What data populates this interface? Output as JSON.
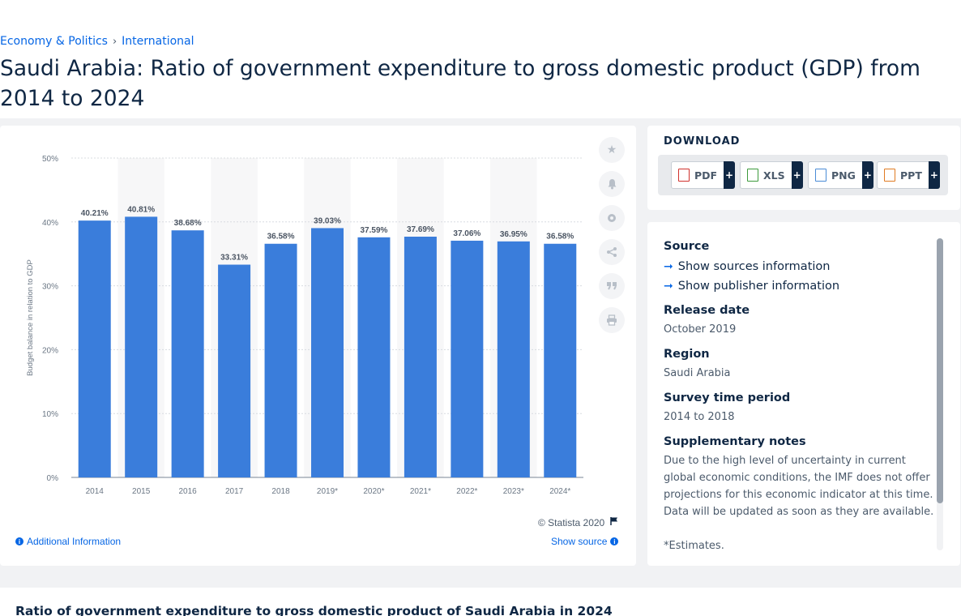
{
  "breadcrumb": [
    "Economy & Politics",
    "International"
  ],
  "page_title": "Saudi Arabia: Ratio of government expenditure to gross domestic product (GDP) from 2014 to 2024",
  "chart_data": {
    "type": "bar",
    "categories": [
      "2014",
      "2015",
      "2016",
      "2017",
      "2018",
      "2019*",
      "2020*",
      "2021*",
      "2022*",
      "2023*",
      "2024*"
    ],
    "values": [
      40.21,
      40.81,
      38.68,
      33.31,
      36.58,
      39.03,
      37.59,
      37.69,
      37.06,
      36.95,
      36.58
    ],
    "data_labels": [
      "40.21%",
      "40.81%",
      "38.68%",
      "33.31%",
      "36.58%",
      "39.03%",
      "37.59%",
      "37.69%",
      "37.06%",
      "36.95%",
      "36.58%"
    ],
    "ylabel": "Budget balance in relation to GDP",
    "yticks": [
      "0%",
      "10%",
      "20%",
      "30%",
      "40%",
      "50%"
    ],
    "ylim": [
      0,
      50
    ],
    "bar_color": "#3a7ddb",
    "grid": true
  },
  "chart_footer": {
    "copyright": "© Statista 2020",
    "additional_info": "Additional Information",
    "show_source": "Show source"
  },
  "download": {
    "title": "DOWNLOAD",
    "buttons": [
      {
        "label": "PDF",
        "plus": "+",
        "color": "#d0312d"
      },
      {
        "label": "XLS",
        "plus": "+",
        "color": "#3c9a3c"
      },
      {
        "label": "PNG",
        "plus": "+",
        "color": "#4a8bd6"
      },
      {
        "label": "PPT",
        "plus": "+",
        "color": "#e07b22"
      }
    ]
  },
  "info": {
    "source_heading": "Source",
    "show_sources": "Show sources information",
    "show_publisher": "Show publisher information",
    "release_heading": "Release date",
    "release_value": "October 2019",
    "region_heading": "Region",
    "region_value": "Saudi Arabia",
    "survey_heading": "Survey time period",
    "survey_value": "2014 to 2018",
    "notes_heading": "Supplementary notes",
    "notes_value": "Due to the high level of uncertainty in current global economic conditions, the IMF does not offer projections for this economic indicator at this time. Data will be updated as soon as they are available.",
    "estimates": "*Estimates."
  },
  "bottom_title": "Ratio of government expenditure to gross domestic product of Saudi Arabia in 2024",
  "tools": [
    "star-icon",
    "bell-icon",
    "gear-icon",
    "share-icon",
    "quote-icon",
    "print-icon"
  ]
}
